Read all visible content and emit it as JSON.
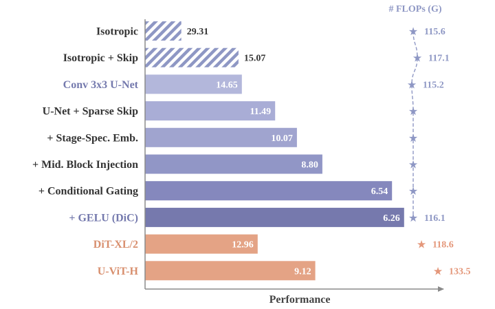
{
  "chart_data": {
    "type": "bar",
    "orientation": "horizontal",
    "xlabel": "Performance",
    "flops_header": "# FLOPs (G)",
    "x_reversed": true,
    "colors": {
      "axis": "#8a8a8a",
      "hatch": "#8e97c4",
      "blue_text": "#7479ad",
      "dark_text": "#333333",
      "orange_text": "#d88f6e",
      "flops_blue": "#8e97c4",
      "flops_orange": "#e4977a"
    },
    "categories": [
      {
        "label": "Isotropic",
        "value": "29.31",
        "v": 29.31,
        "style": "hatch",
        "color": "#8e97c4",
        "label_color": "#333333",
        "value_inside": false,
        "flops": "115.6",
        "flops_color": "#8e97c4"
      },
      {
        "label": "Isotropic + Skip",
        "value": "15.07",
        "v": 15.07,
        "style": "hatch",
        "color": "#8e97c4",
        "label_color": "#333333",
        "value_inside": false,
        "flops": "117.1",
        "flops_color": "#8e97c4"
      },
      {
        "label": "Conv 3x3 U-Net",
        "value": "14.65",
        "v": 14.65,
        "style": "solid",
        "color": "#b3b7db",
        "label_color": "#7479ad",
        "value_inside": true,
        "flops": "115.2",
        "flops_color": "#8e97c4"
      },
      {
        "label": "U-Net + Sparse Skip",
        "value": "11.49",
        "v": 11.49,
        "style": "solid",
        "color": "#a9add6",
        "label_color": "#333333",
        "value_inside": true,
        "flops": null,
        "flops_color": "#8e97c4"
      },
      {
        "label": "+ Stage-Spec. Emb.",
        "value": "10.07",
        "v": 10.07,
        "style": "solid",
        "color": "#a0a4cf",
        "label_color": "#333333",
        "value_inside": true,
        "flops": null,
        "flops_color": "#8e97c4"
      },
      {
        "label": "+ Mid. Block Injection",
        "value": "8.80",
        "v": 8.8,
        "style": "solid",
        "color": "#9196c6",
        "label_color": "#333333",
        "value_inside": true,
        "flops": null,
        "flops_color": "#8e97c4"
      },
      {
        "label": "+ Conditional Gating",
        "value": "6.54",
        "v": 6.54,
        "style": "solid",
        "color": "#8588bd",
        "label_color": "#333333",
        "value_inside": true,
        "flops": null,
        "flops_color": "#8e97c4"
      },
      {
        "label": "+ GELU (DiC)",
        "value": "6.26",
        "v": 6.26,
        "style": "solid",
        "color": "#7679ad",
        "label_color": "#7479ad",
        "value_inside": true,
        "flops": "116.1",
        "flops_color": "#8e97c4"
      },
      {
        "label": "DiT-XL/2",
        "value": "12.96",
        "v": 12.96,
        "style": "solid",
        "color": "#e4a385",
        "label_color": "#d88f6e",
        "value_inside": true,
        "flops": "118.6",
        "flops_color": "#e4977a"
      },
      {
        "label": "U-ViT-H",
        "value": "9.12",
        "v": 9.12,
        "style": "solid",
        "color": "#e4a385",
        "label_color": "#d88f6e",
        "value_inside": true,
        "flops": "133.5",
        "flops_color": "#e4977a"
      }
    ],
    "flops_trace_rows": [
      0,
      7
    ]
  }
}
